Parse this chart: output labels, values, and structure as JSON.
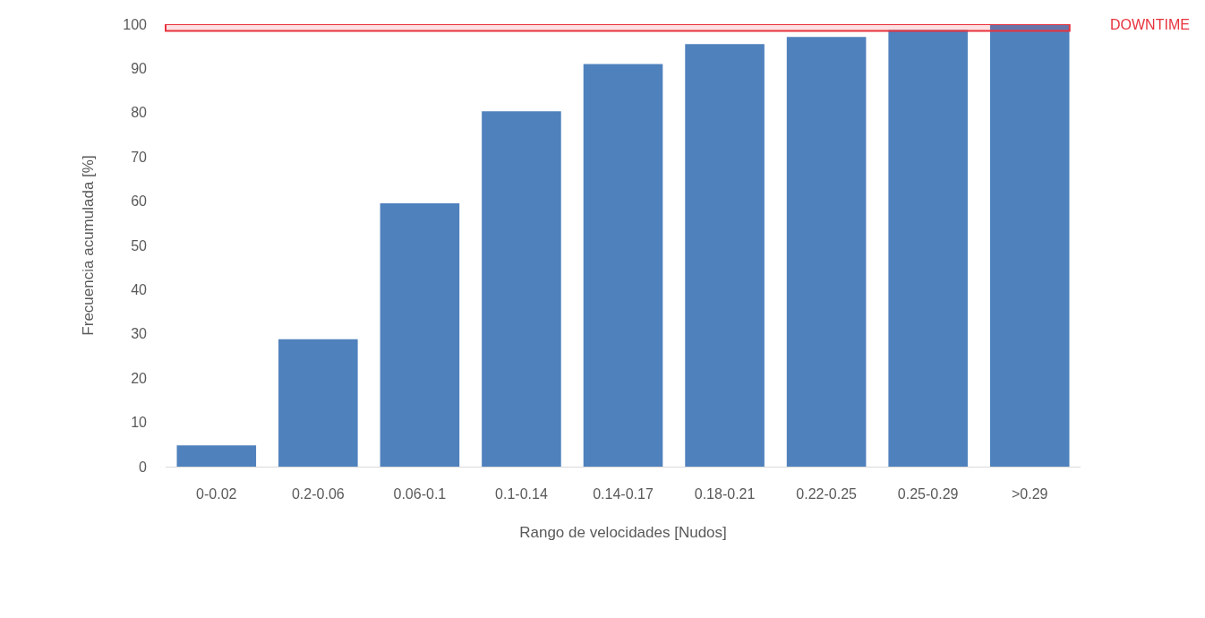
{
  "chart_data": {
    "type": "bar",
    "xlabel": "Rango de velocidades [Nudos]",
    "ylabel": "Frecuencia acumulada [%]",
    "categories": [
      "0-0.02",
      "0.2-0.06",
      "0.06-0.1",
      "0.1-0.14",
      "0.14-0.17",
      "0.18-0.21",
      "0.22-0.25",
      "0.25-0.29",
      ">0.29"
    ],
    "values": [
      4.8,
      28.8,
      59.5,
      80.3,
      91,
      95.5,
      97.1,
      98.7,
      100
    ],
    "color": "#4f81bd",
    "ylim": [
      0,
      100
    ],
    "yticks": [
      0,
      10,
      20,
      30,
      40,
      50,
      60,
      70,
      80,
      90,
      100
    ],
    "bands": [
      {
        "axis": "y",
        "from": 98.5,
        "to": 100,
        "label": "DOWNTIME",
        "color": "#e8323c"
      }
    ]
  }
}
